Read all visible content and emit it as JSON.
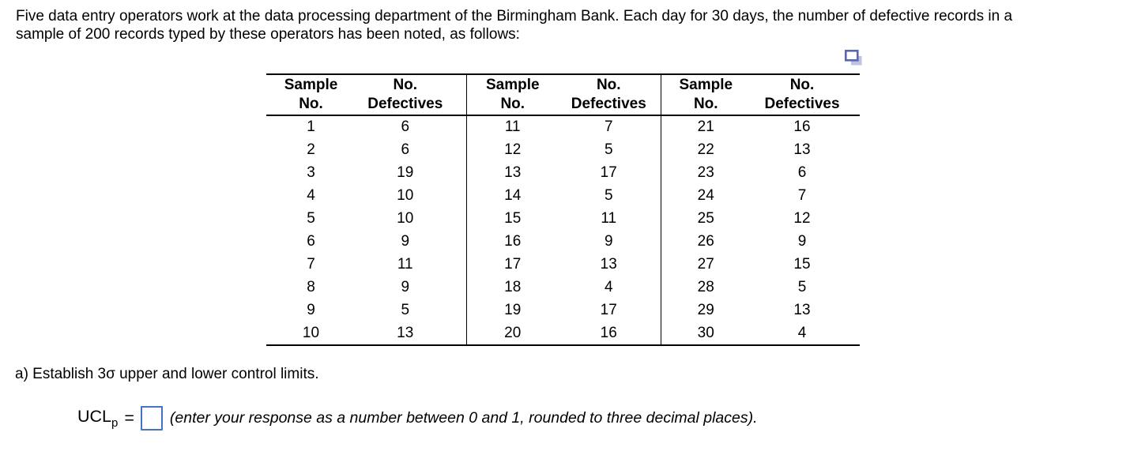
{
  "intro": {
    "line1": "Five data entry operators work at the data processing department of the Birmingham Bank. Each day for 30 days, the number of defective records in a",
    "line2": "sample of 200 records typed by these operators has been noted, as follows:"
  },
  "icon": {
    "name": "copy-icon"
  },
  "colors": {
    "icon_front_stroke": "#5a67b0",
    "icon_back_fill": "#bcc3e6",
    "answer_box_border": "#4472c4",
    "text": "#000000",
    "table_rule": "#000000"
  },
  "table": {
    "headers": [
      {
        "l1": "Sample",
        "l2": "No."
      },
      {
        "l1": "No.",
        "l2": "Defectives"
      },
      {
        "l1": "Sample",
        "l2": "No."
      },
      {
        "l1": "No.",
        "l2": "Defectives"
      },
      {
        "l1": "Sample",
        "l2": "No."
      },
      {
        "l1": "No.",
        "l2": "Defectives"
      }
    ],
    "rows": [
      [
        1,
        6,
        11,
        7,
        21,
        16
      ],
      [
        2,
        6,
        12,
        5,
        22,
        13
      ],
      [
        3,
        19,
        13,
        17,
        23,
        6
      ],
      [
        4,
        10,
        14,
        5,
        24,
        7
      ],
      [
        5,
        10,
        15,
        11,
        25,
        12
      ],
      [
        6,
        9,
        16,
        9,
        26,
        9
      ],
      [
        7,
        11,
        17,
        13,
        27,
        15
      ],
      [
        8,
        9,
        18,
        4,
        28,
        5
      ],
      [
        9,
        5,
        19,
        17,
        29,
        13
      ],
      [
        10,
        13,
        20,
        16,
        30,
        4
      ]
    ]
  },
  "part_a": {
    "text": "a) Establish 3σ upper and lower control limits."
  },
  "answer": {
    "label_base": "UCL",
    "label_sub": "p",
    "equals": "=",
    "input_value": "",
    "input_placeholder": "",
    "hint": "(enter your response as a number between 0 and 1, rounded to three decimal places)."
  }
}
